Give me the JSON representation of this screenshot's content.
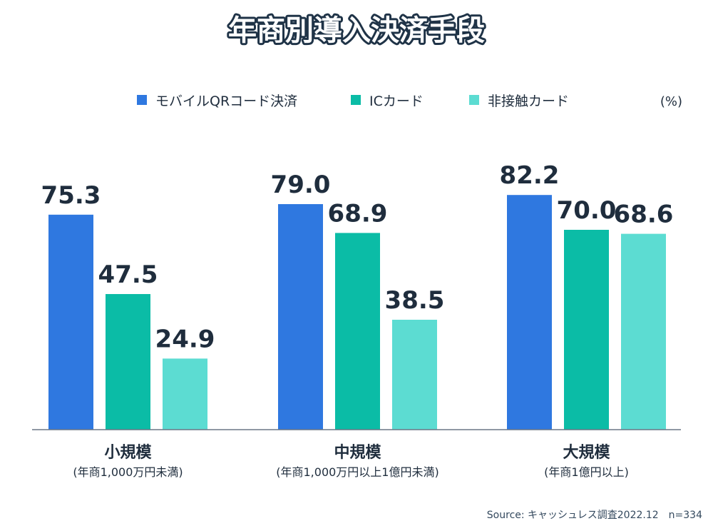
{
  "chart_data": {
    "type": "bar",
    "title": "年商別導入決済手段",
    "unit": "(%)",
    "categories": [
      "小規模",
      "中規模",
      "大規模"
    ],
    "category_notes": [
      "(年商1,000万円未満)",
      "(年商1,000万円以上1億円未満)",
      "(年商1億円以上)"
    ],
    "series": [
      {
        "name": "モバイルQRコード決済",
        "color": "#2f78e0",
        "values": [
          75.3,
          79.0,
          82.2
        ]
      },
      {
        "name": "ICカード",
        "color": "#0bbca6",
        "values": [
          47.5,
          68.9,
          70.0
        ]
      },
      {
        "name": "非接触カード",
        "color": "#5cdcd2",
        "values": [
          24.9,
          38.5,
          68.6
        ]
      }
    ],
    "ylim": [
      0,
      100
    ],
    "source": "Source: キャッシュレス調査2022.12　n=334"
  }
}
